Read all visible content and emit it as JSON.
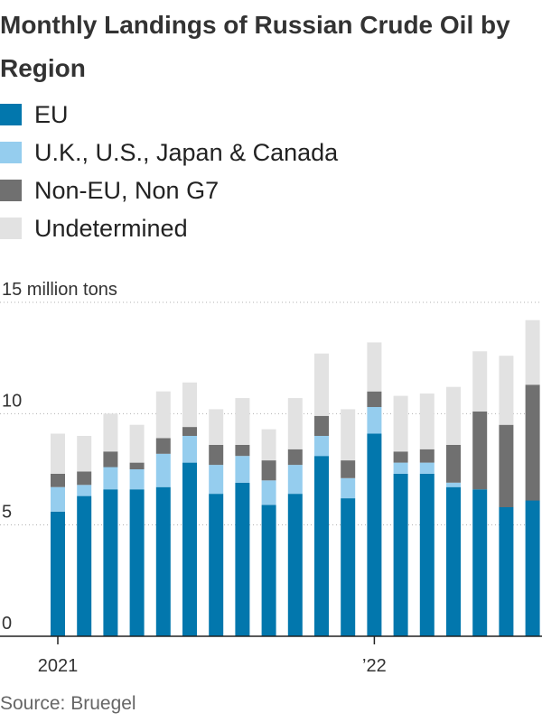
{
  "chart_data": {
    "type": "bar",
    "stacked": true,
    "title": "Monthly Landings of Russian Crude Oil by Region",
    "unit_label": "15 million tons",
    "y_ticks": [
      0,
      5,
      10
    ],
    "ylim": [
      0,
      15
    ],
    "x_tick_labels": [
      {
        "label": "2021",
        "category_index": 0
      },
      {
        "label": "’22",
        "category_index": 12
      }
    ],
    "categories": [
      "2021-01",
      "2021-02",
      "2021-03",
      "2021-04",
      "2021-05",
      "2021-06",
      "2021-07",
      "2021-08",
      "2021-09",
      "2021-10",
      "2021-11",
      "2021-12",
      "2022-01",
      "2022-02",
      "2022-03",
      "2022-04",
      "2022-05",
      "2022-06",
      "2022-07",
      "2022-08"
    ],
    "series": [
      {
        "name": "EU",
        "color": "#0277ad",
        "values": [
          5.6,
          6.3,
          6.6,
          6.6,
          6.7,
          7.8,
          6.4,
          6.9,
          5.9,
          6.4,
          8.1,
          6.2,
          9.1,
          7.3,
          7.3,
          6.7,
          6.6,
          5.8,
          6.1,
          0
        ]
      },
      {
        "name": "U.K., U.S., Japan & Canada",
        "color": "#95cdee",
        "values": [
          1.1,
          0.5,
          1.0,
          0.9,
          1.5,
          1.2,
          1.3,
          1.2,
          1.1,
          1.3,
          0.9,
          0.9,
          1.2,
          0.5,
          0.5,
          0.2,
          0,
          0,
          0,
          0
        ]
      },
      {
        "name": "Non-EU, Non G7",
        "color": "#707070",
        "values": [
          0.6,
          0.6,
          0.7,
          0.3,
          0.7,
          0.4,
          0.9,
          0.5,
          0.9,
          0.7,
          0.9,
          0.8,
          0.7,
          0.5,
          0.6,
          1.7,
          3.5,
          3.7,
          5.2,
          0
        ]
      },
      {
        "name": "Undetermined",
        "color": "#e2e2e2",
        "values": [
          1.8,
          1.6,
          1.7,
          1.7,
          2.1,
          2.0,
          1.6,
          2.1,
          1.4,
          2.3,
          2.8,
          2.3,
          2.2,
          2.5,
          2.5,
          2.6,
          2.7,
          3.1,
          2.9,
          0
        ]
      }
    ]
  },
  "source": "Source: Bruegel"
}
